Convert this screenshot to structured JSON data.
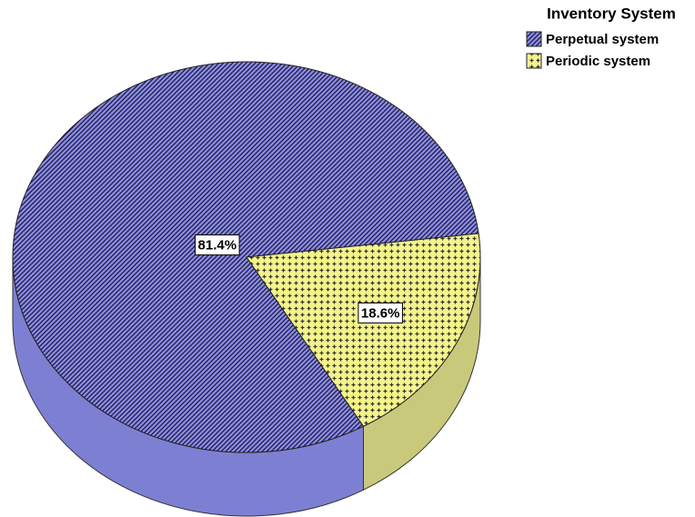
{
  "chart_data": {
    "type": "pie",
    "legend_title": "Inventory System",
    "categories": [
      "Perpetual system",
      "Periodic system"
    ],
    "values": [
      81.4,
      18.6
    ],
    "value_labels": [
      "81.4%",
      "18.6%"
    ],
    "colors": [
      "#8c8ce6",
      "#f4f48c"
    ],
    "side_colors": [
      "#7d80d2",
      "#c9c97c"
    ],
    "legend": "top-right"
  }
}
